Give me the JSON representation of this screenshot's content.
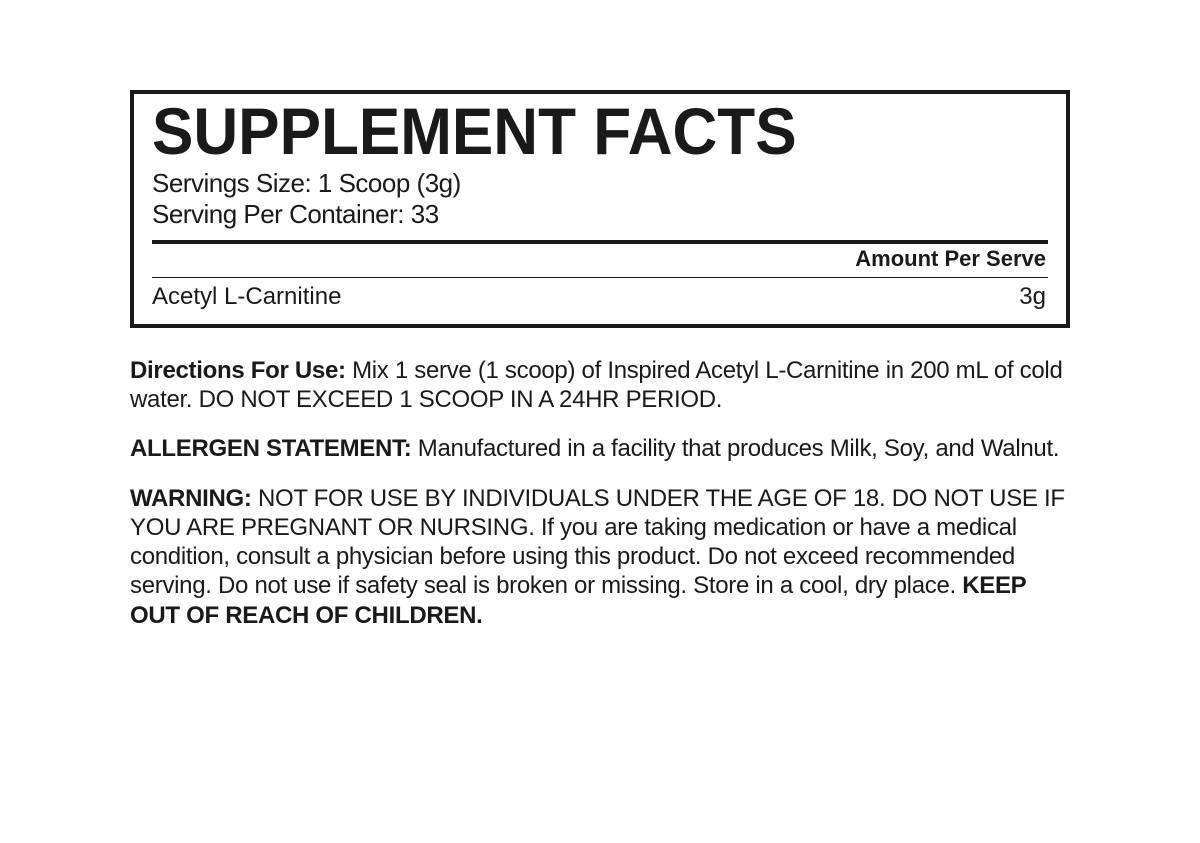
{
  "panel": {
    "title": "SUPPLEMENT FACTS",
    "serving_size_label": "Servings Size: ",
    "serving_size_value": "1 Scoop (3g)",
    "servings_per_label": "Serving Per Container: ",
    "servings_per_value": "33",
    "amount_header": "Amount Per Serve",
    "ingredient_name": "Acetyl L-Carnitine",
    "ingredient_amount": "3g"
  },
  "directions": {
    "label": "Directions For Use: ",
    "text": "Mix 1 serve (1 scoop) of Inspired Acetyl L-Carnitine in 200 mL of cold water. DO NOT EXCEED 1 SCOOP IN A 24HR PERIOD."
  },
  "allergen": {
    "label": "ALLERGEN STATEMENT: ",
    "text": "Manufactured in a facility that produces Milk, Soy, and Walnut."
  },
  "warning": {
    "label": "WARNING: ",
    "text": "NOT FOR USE BY INDIVIDUALS UNDER THE AGE OF 18. DO NOT USE IF YOU ARE PREGNANT OR NURSING. If you are taking medication or have a medical condition, consult a physician before using this product. Do not exceed recommended serving. Do not use if safety seal is broken or missing. Store in a cool, dry place. ",
    "footer": "KEEP OUT OF REACH OF CHILDREN."
  },
  "style": {
    "text_color": "#1a1a1a",
    "background_color": "#ffffff",
    "border_color": "#1a1a1a",
    "title_fontsize": 66,
    "body_fontsize": 24,
    "serving_fontsize": 26,
    "header_fontsize": 22,
    "panel_border_width": 4,
    "thick_rule_width": 4,
    "thin_rule_width": 1.5
  }
}
